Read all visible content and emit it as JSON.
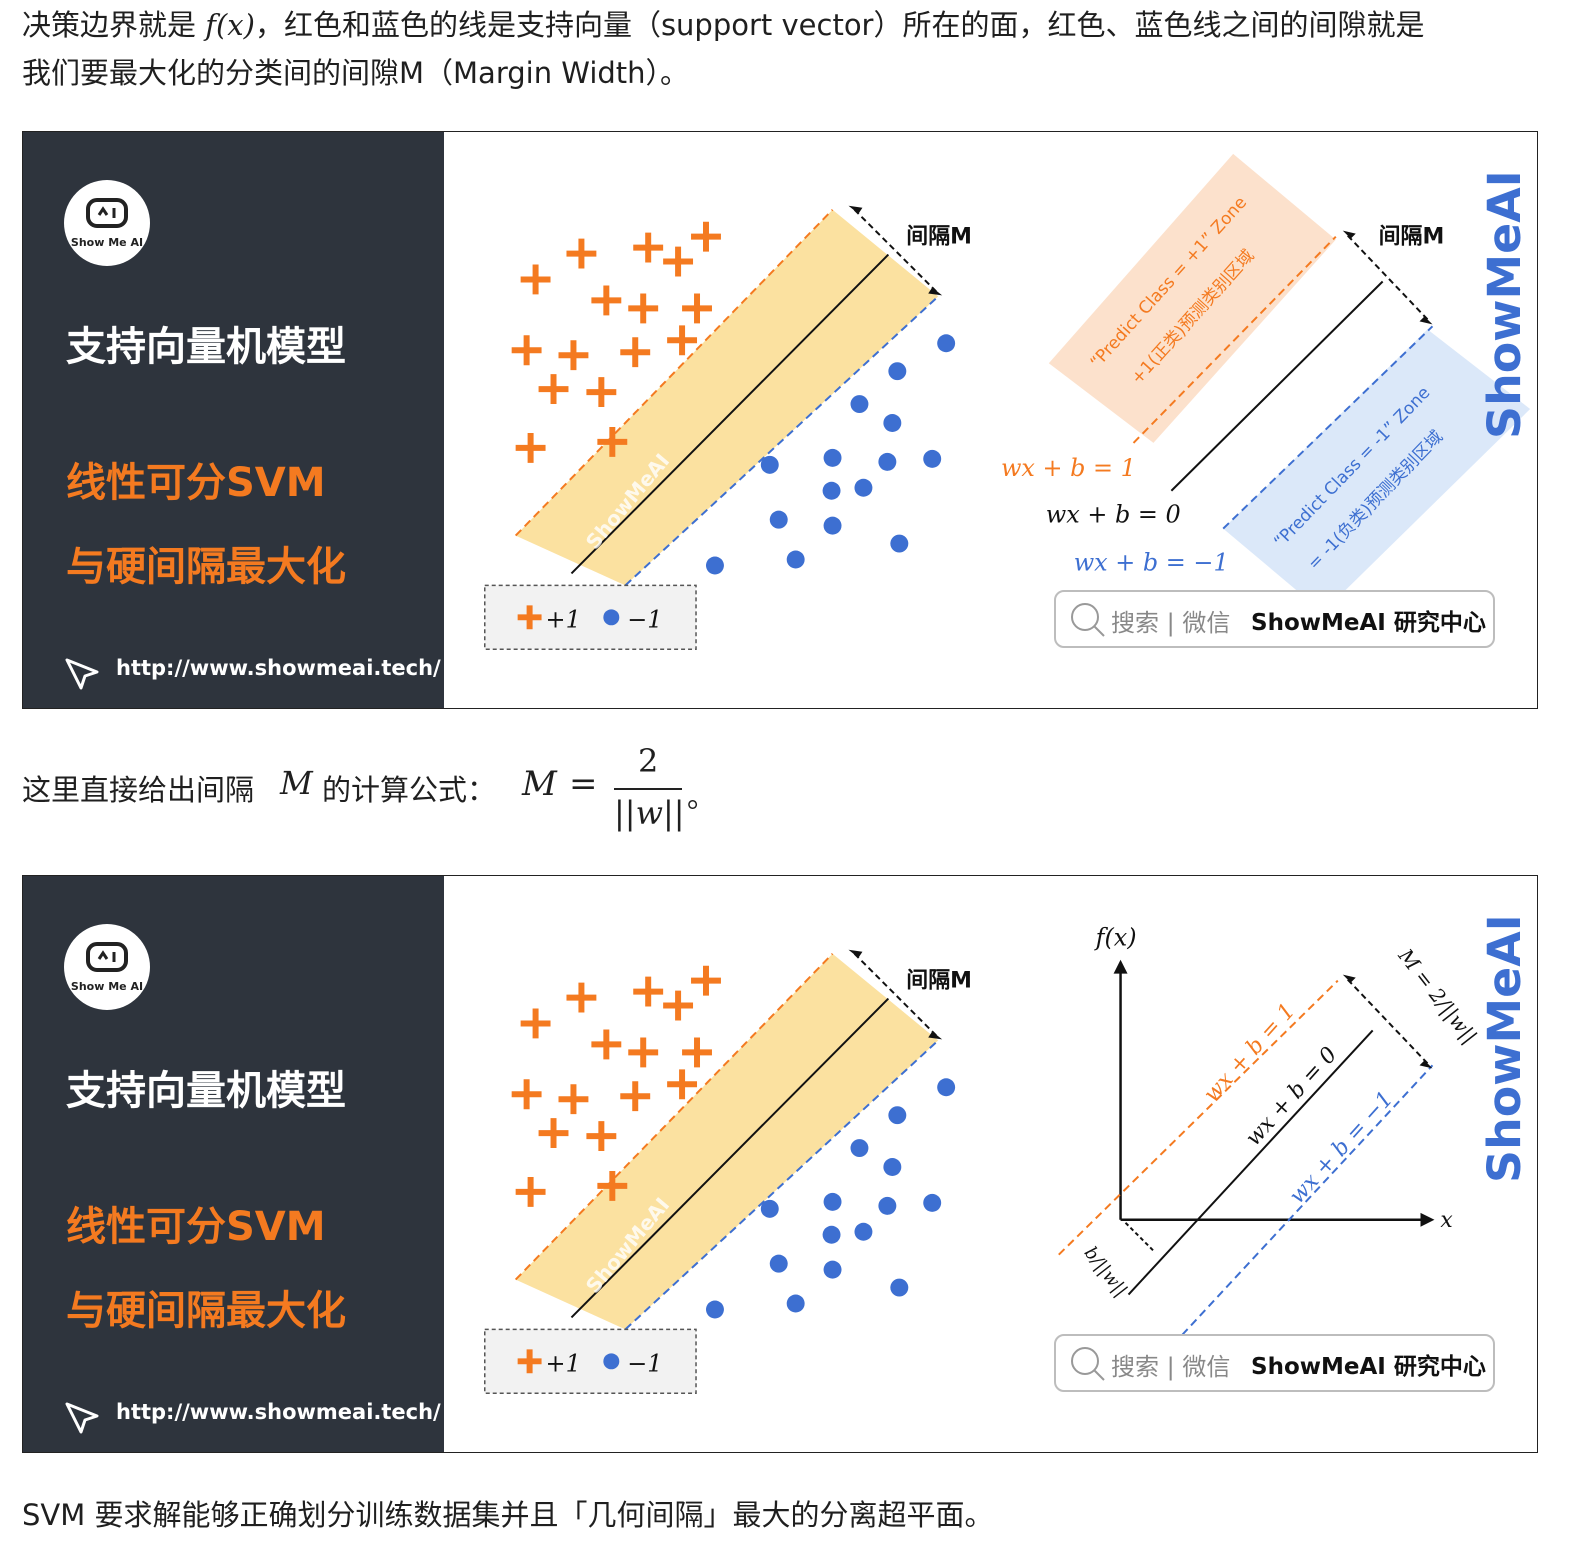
{
  "intro": {
    "line1_a": "决策边界就是 ",
    "line1_fx": "f(x)",
    "line1_b": "，红色和蓝色的线是支持向量（support vector）所在的面，红色、蓝色线之间的间隙就是",
    "line2": "我们要最大化的分类间的间隙M（Margin Width）。"
  },
  "figure_common": {
    "logo_text": "Show Me AI",
    "title": "支持向量机模型",
    "sub1": "线性可分SVM",
    "sub2": "与硬间隔最大化",
    "url": "http://www.showmeai.tech/",
    "watermark": "ShowMeAI",
    "margin_label": "间隔M",
    "legend_pos": "+1",
    "legend_neg": "−1",
    "search_text": "搜索 | 微信",
    "search_brand": "ShowMeAI 研究中心",
    "brand_vertical": "ShowMeAI"
  },
  "figure1": {
    "zone_pos_1": "“Predict Class = +1” Zone",
    "zone_pos_2": "+1(正类)预测类别区域",
    "zone_neg_1": "“Predict Class = -1” Zone",
    "zone_neg_2": "= -1(负类)预测类别区域",
    "eq_pos": "wx + b = 1",
    "eq_zero": "wx + b = 0",
    "eq_neg": "wx + b = −1",
    "margin_label": "间隔M"
  },
  "formula": {
    "label": "这里直接给出间隔",
    "var": "M",
    "label2": "的计算公式：",
    "lhs": "M",
    "eq": "=",
    "numerator": "2",
    "denominator": "||w||",
    "end": "。"
  },
  "figure2": {
    "fx_label": "f(x)",
    "x_label": "x",
    "eq_pos": "wx + b = 1",
    "eq_zero": "wx + b = 0",
    "eq_neg": "wx + b = −1",
    "margin_eq": "M = 2/||w||",
    "offset": "b/||w||"
  },
  "outro": "SVM 要求解能够正确划分训练数据集并且「几何间隔」最大的分离超平面。",
  "colors": {
    "orange": "#f47a20",
    "blue": "#3d6fd1",
    "panel": "#2e343d",
    "band": "#fbe1a0"
  }
}
